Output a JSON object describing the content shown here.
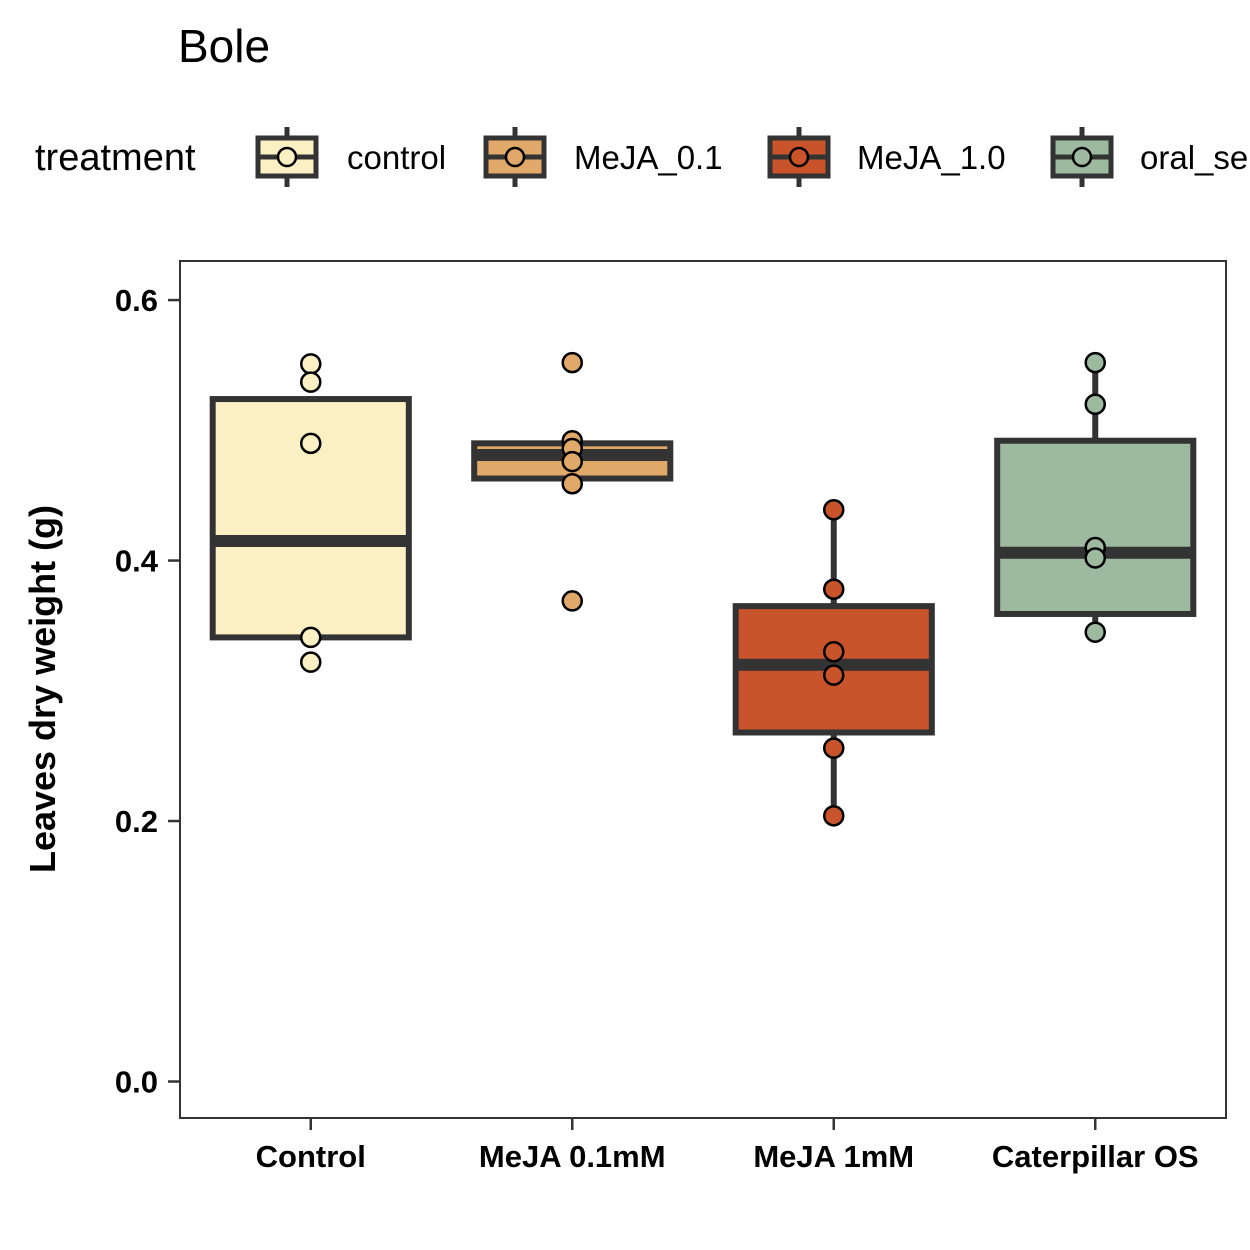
{
  "chart_data": {
    "type": "boxplot",
    "title": "Bole",
    "xlabel": "",
    "ylabel": "Leaves dry weight (g)",
    "ylim": [
      -0.028,
      0.63
    ],
    "yticks": [
      0.0,
      0.2,
      0.4,
      0.6
    ],
    "ytick_labels": [
      "0.0",
      "0.2",
      "0.4",
      "0.6"
    ],
    "grid": false,
    "legend": {
      "title": "treatment",
      "position": "top",
      "entries": [
        {
          "label": "control",
          "color": "#FAF0C3"
        },
        {
          "label": "MeJA_0.1",
          "color": "#E0A869"
        },
        {
          "label": "MeJA_1.0",
          "color": "#C9532A"
        },
        {
          "label": "oral_se",
          "color": "#9DBAA0"
        }
      ]
    },
    "categories": [
      "Control",
      "MeJA 0.1mM",
      "MeJA 1mM",
      "Caterpillar OS"
    ],
    "series": [
      {
        "name": "control",
        "color": "#FAF0C3",
        "q1": 0.341,
        "median": 0.415,
        "q3": 0.524,
        "whisker_low": 0.341,
        "whisker_high": 0.524,
        "points": [
          0.551,
          0.537,
          0.49,
          0.341,
          0.322
        ]
      },
      {
        "name": "MeJA_0.1",
        "color": "#E0A869",
        "q1": 0.463,
        "median": 0.481,
        "q3": 0.49,
        "whisker_low": 0.463,
        "whisker_high": 0.49,
        "points": [
          0.552,
          0.492,
          0.486,
          0.476,
          0.459,
          0.369
        ]
      },
      {
        "name": "MeJA_1.0",
        "color": "#C9532A",
        "q1": 0.268,
        "median": 0.32,
        "q3": 0.365,
        "whisker_low": 0.204,
        "whisker_high": 0.439,
        "points": [
          0.439,
          0.378,
          0.33,
          0.312,
          0.256,
          0.204
        ]
      },
      {
        "name": "oral_se",
        "color": "#9DBAA0",
        "q1": 0.359,
        "median": 0.406,
        "q3": 0.492,
        "whisker_low": 0.345,
        "whisker_high": 0.552,
        "points": [
          0.552,
          0.52,
          0.41,
          0.402,
          0.345
        ]
      }
    ]
  }
}
